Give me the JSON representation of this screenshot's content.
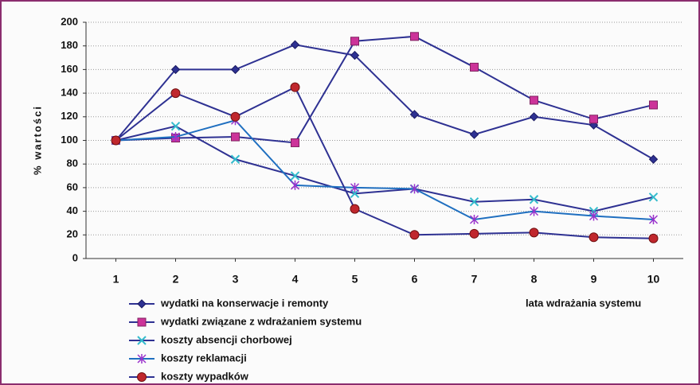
{
  "chart_data": {
    "type": "line",
    "y_label": "% wartości",
    "x_label": "lata wdrażania systemu",
    "x": [
      1,
      2,
      3,
      4,
      5,
      6,
      7,
      8,
      9,
      10
    ],
    "xlim": [
      0.5,
      10.5
    ],
    "xticks": [
      1,
      2,
      3,
      4,
      5,
      6,
      7,
      8,
      9,
      10
    ],
    "ylim": [
      0,
      200
    ],
    "yticks": [
      0,
      20,
      40,
      60,
      80,
      100,
      120,
      140,
      160,
      180,
      200
    ],
    "grid": true,
    "legend": "bottom-left",
    "series": [
      {
        "name": "wydatki na konserwacje i remonty",
        "color": "#2e3192",
        "line_color": "#2e3192",
        "marker": "diamond",
        "values": [
          100,
          160,
          160,
          181,
          172,
          122,
          105,
          120,
          113,
          84
        ]
      },
      {
        "name": "wydatki związane z wdrażaniem systemu",
        "color": "#cc3399",
        "line_color": "#2e3192",
        "marker": "square",
        "values": [
          100,
          102,
          103,
          98,
          184,
          188,
          162,
          134,
          118,
          130
        ]
      },
      {
        "name": "koszty absencji chorbowej",
        "color": "#33bbcc",
        "line_color": "#2e3192",
        "marker": "x",
        "values": [
          100,
          112,
          84,
          70,
          55,
          59,
          48,
          50,
          40,
          52
        ]
      },
      {
        "name": "koszty reklamacji",
        "color": "#9933cc",
        "line_color": "#1f6fc0",
        "marker": "star",
        "values": [
          100,
          103,
          117,
          62,
          60,
          59,
          33,
          40,
          36,
          33
        ]
      },
      {
        "name": "koszty wypadków",
        "color": "#c0272d",
        "line_color": "#2e3192",
        "marker": "circle",
        "values": [
          100,
          140,
          120,
          145,
          42,
          20,
          21,
          22,
          18,
          17
        ]
      }
    ]
  }
}
